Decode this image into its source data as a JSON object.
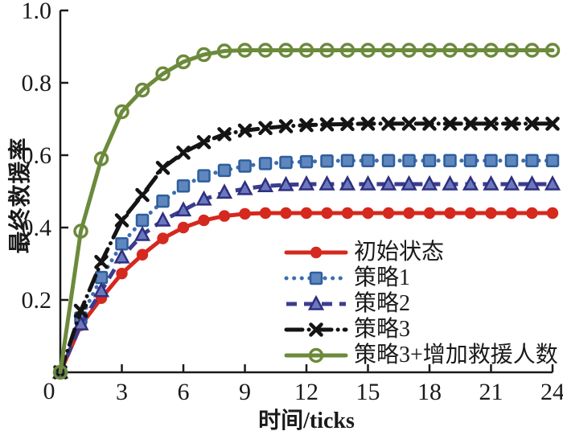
{
  "figure": {
    "background": "#ffffff",
    "text_color": "#1a1a1a"
  },
  "chart_data": {
    "type": "line",
    "title": "",
    "xlabel": "时间/ticks",
    "ylabel": "最终救援率",
    "xlim": [
      0,
      24
    ],
    "ylim": [
      0,
      1.0
    ],
    "x_ticks": [
      3,
      6,
      9,
      12,
      15,
      18,
      21,
      24
    ],
    "y_ticks": [
      0.2,
      0.4,
      0.6,
      0.8,
      1.0
    ],
    "origin_label": "0",
    "grid": false,
    "legend_position": "inside-lower-right",
    "x": [
      0,
      1,
      2,
      3,
      4,
      5,
      6,
      7,
      8,
      9,
      10,
      11,
      12,
      13,
      14,
      15,
      16,
      17,
      18,
      19,
      20,
      21,
      22,
      23,
      24
    ],
    "series": [
      {
        "name": "初始状态",
        "color": "#d5281e",
        "line_style": "solid",
        "marker": "circle-filled",
        "values": [
          0,
          0.13,
          0.205,
          0.273,
          0.325,
          0.37,
          0.4,
          0.42,
          0.432,
          0.438,
          0.44,
          0.44,
          0.44,
          0.44,
          0.44,
          0.44,
          0.44,
          0.44,
          0.44,
          0.44,
          0.44,
          0.44,
          0.44,
          0.44,
          0.44
        ]
      },
      {
        "name": "策略1",
        "color": "#3d6eb0",
        "marker_fill": "#5f87bd",
        "marker_stroke": "#2e5e9e",
        "line_style": "dotted",
        "marker": "square",
        "values": [
          0,
          0.15,
          0.262,
          0.355,
          0.42,
          0.473,
          0.515,
          0.543,
          0.558,
          0.57,
          0.577,
          0.58,
          0.582,
          0.584,
          0.585,
          0.585,
          0.585,
          0.585,
          0.585,
          0.585,
          0.585,
          0.585,
          0.585,
          0.585,
          0.585
        ]
      },
      {
        "name": "策略2",
        "color": "#3c3c8e",
        "marker_fill": "#6a79bd",
        "marker_stroke": "#2f2f80",
        "line_style": "dashed",
        "marker": "triangle",
        "values": [
          0,
          0.133,
          0.225,
          0.318,
          0.38,
          0.42,
          0.448,
          0.478,
          0.497,
          0.507,
          0.515,
          0.518,
          0.52,
          0.52,
          0.52,
          0.52,
          0.52,
          0.52,
          0.52,
          0.52,
          0.52,
          0.52,
          0.52,
          0.52,
          0.52
        ]
      },
      {
        "name": "策略3",
        "color": "#141414",
        "line_style": "dashdot",
        "marker": "x",
        "values": [
          0,
          0.17,
          0.305,
          0.42,
          0.49,
          0.565,
          0.607,
          0.636,
          0.658,
          0.668,
          0.675,
          0.68,
          0.683,
          0.685,
          0.686,
          0.687,
          0.687,
          0.687,
          0.687,
          0.687,
          0.687,
          0.687,
          0.687,
          0.687,
          0.687
        ]
      },
      {
        "name": "策略3+增加救援人数",
        "color": "#6c8a3b",
        "line_style": "solid",
        "marker": "circle-open",
        "values": [
          0,
          0.39,
          0.59,
          0.72,
          0.78,
          0.825,
          0.858,
          0.878,
          0.888,
          0.89,
          0.89,
          0.89,
          0.89,
          0.89,
          0.89,
          0.89,
          0.89,
          0.89,
          0.89,
          0.89,
          0.89,
          0.89,
          0.89,
          0.89,
          0.89
        ]
      }
    ]
  }
}
